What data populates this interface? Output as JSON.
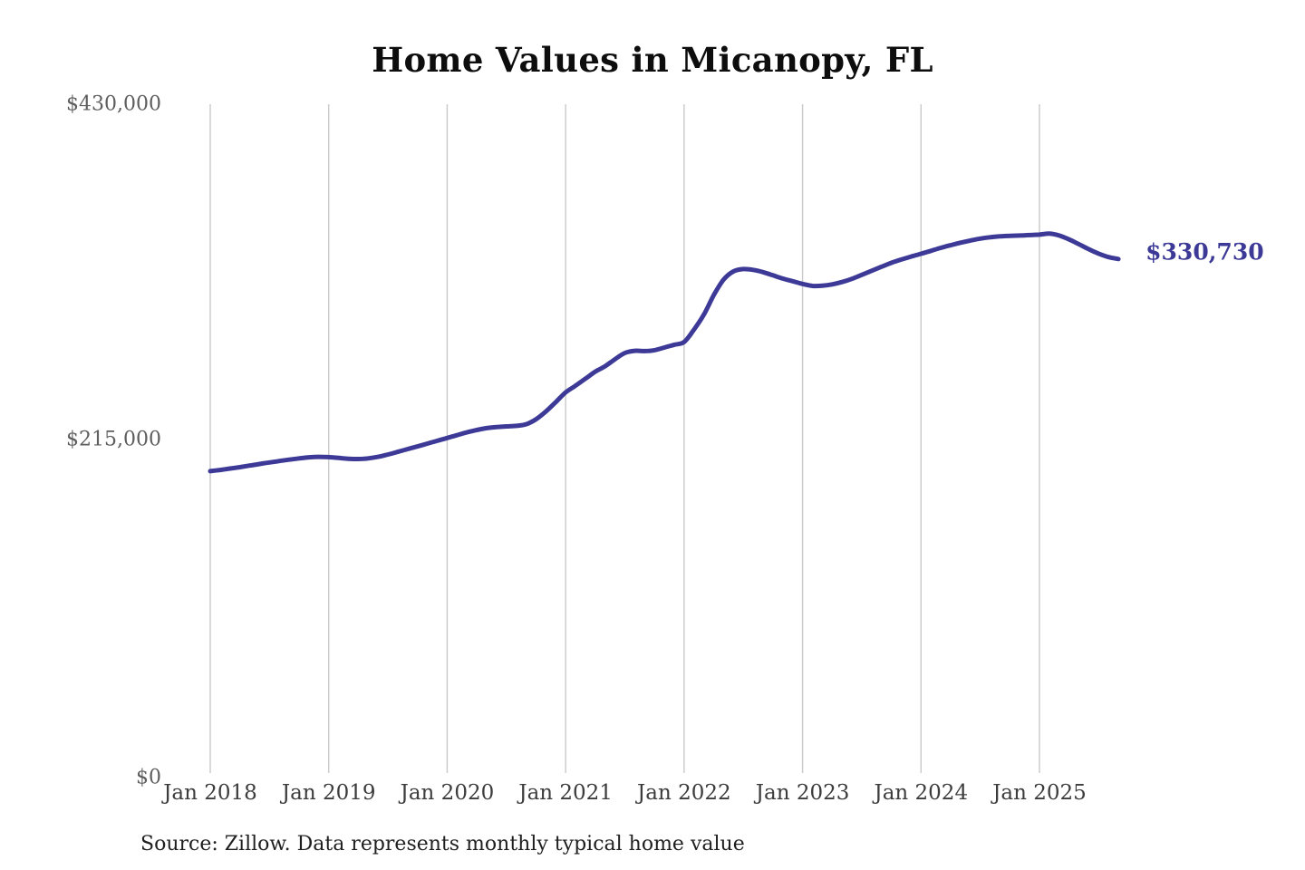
{
  "title": "Home Values in Micanopy, FL",
  "source_note": "Source: Zillow. Data represents monthly typical home value",
  "current_value_label": "$330,730",
  "colors": {
    "line": "#3d3a97",
    "grid": "#c9c9c9",
    "y_tick_text": "#5e5e5e",
    "x_tick_text": "#3c3c3c",
    "title_text": "#0d0d0d",
    "source_text": "#1f1f1f",
    "background": "#ffffff"
  },
  "chart_data": {
    "type": "line",
    "title": "Home Values in Micanopy, FL",
    "unit": "USD",
    "frequency": "monthly",
    "x_start": "2018-01",
    "x_end": "2025-09",
    "ylim": [
      0,
      430000
    ],
    "grid": "vertical-only",
    "legend": "none",
    "y_ticks": [
      {
        "label": "$0",
        "value": 0
      },
      {
        "label": "$215,000",
        "value": 215000
      },
      {
        "label": "$430,000",
        "value": 430000
      }
    ],
    "x_ticks": [
      {
        "label": "Jan 2018",
        "month_index": 0
      },
      {
        "label": "Jan 2019",
        "month_index": 12
      },
      {
        "label": "Jan 2020",
        "month_index": 24
      },
      {
        "label": "Jan 2021",
        "month_index": 36
      },
      {
        "label": "Jan 2022",
        "month_index": 48
      },
      {
        "label": "Jan 2023",
        "month_index": 60
      },
      {
        "label": "Jan 2024",
        "month_index": 72
      },
      {
        "label": "Jan 2025",
        "month_index": 84
      }
    ],
    "series": [
      {
        "name": "Monthly typical home value",
        "values": [
          194700,
          195500,
          196400,
          197300,
          198300,
          199300,
          200300,
          201200,
          202100,
          202900,
          203600,
          203900,
          203700,
          203200,
          202700,
          202500,
          202900,
          203900,
          205400,
          207100,
          208900,
          210600,
          212400,
          214200,
          216000,
          217800,
          219600,
          221100,
          222300,
          223000,
          223400,
          223800,
          224800,
          228000,
          233000,
          239000,
          245200,
          249500,
          254000,
          258500,
          262000,
          266500,
          270500,
          271900,
          271700,
          272300,
          274000,
          275800,
          277500,
          285500,
          295000,
          307500,
          317500,
          322800,
          324300,
          323800,
          322300,
          320300,
          318200,
          316500,
          314800,
          313500,
          313600,
          314500,
          316000,
          318000,
          320600,
          323200,
          325800,
          328300,
          330400,
          332300,
          334100,
          336000,
          337900,
          339600,
          341200,
          342600,
          343800,
          344700,
          345300,
          345600,
          345800,
          346100,
          346400,
          347000,
          345800,
          343300,
          340200,
          337000,
          334200,
          332000,
          330730
        ]
      }
    ],
    "end_annotation": {
      "text": "$330,730",
      "value": 330730
    }
  }
}
